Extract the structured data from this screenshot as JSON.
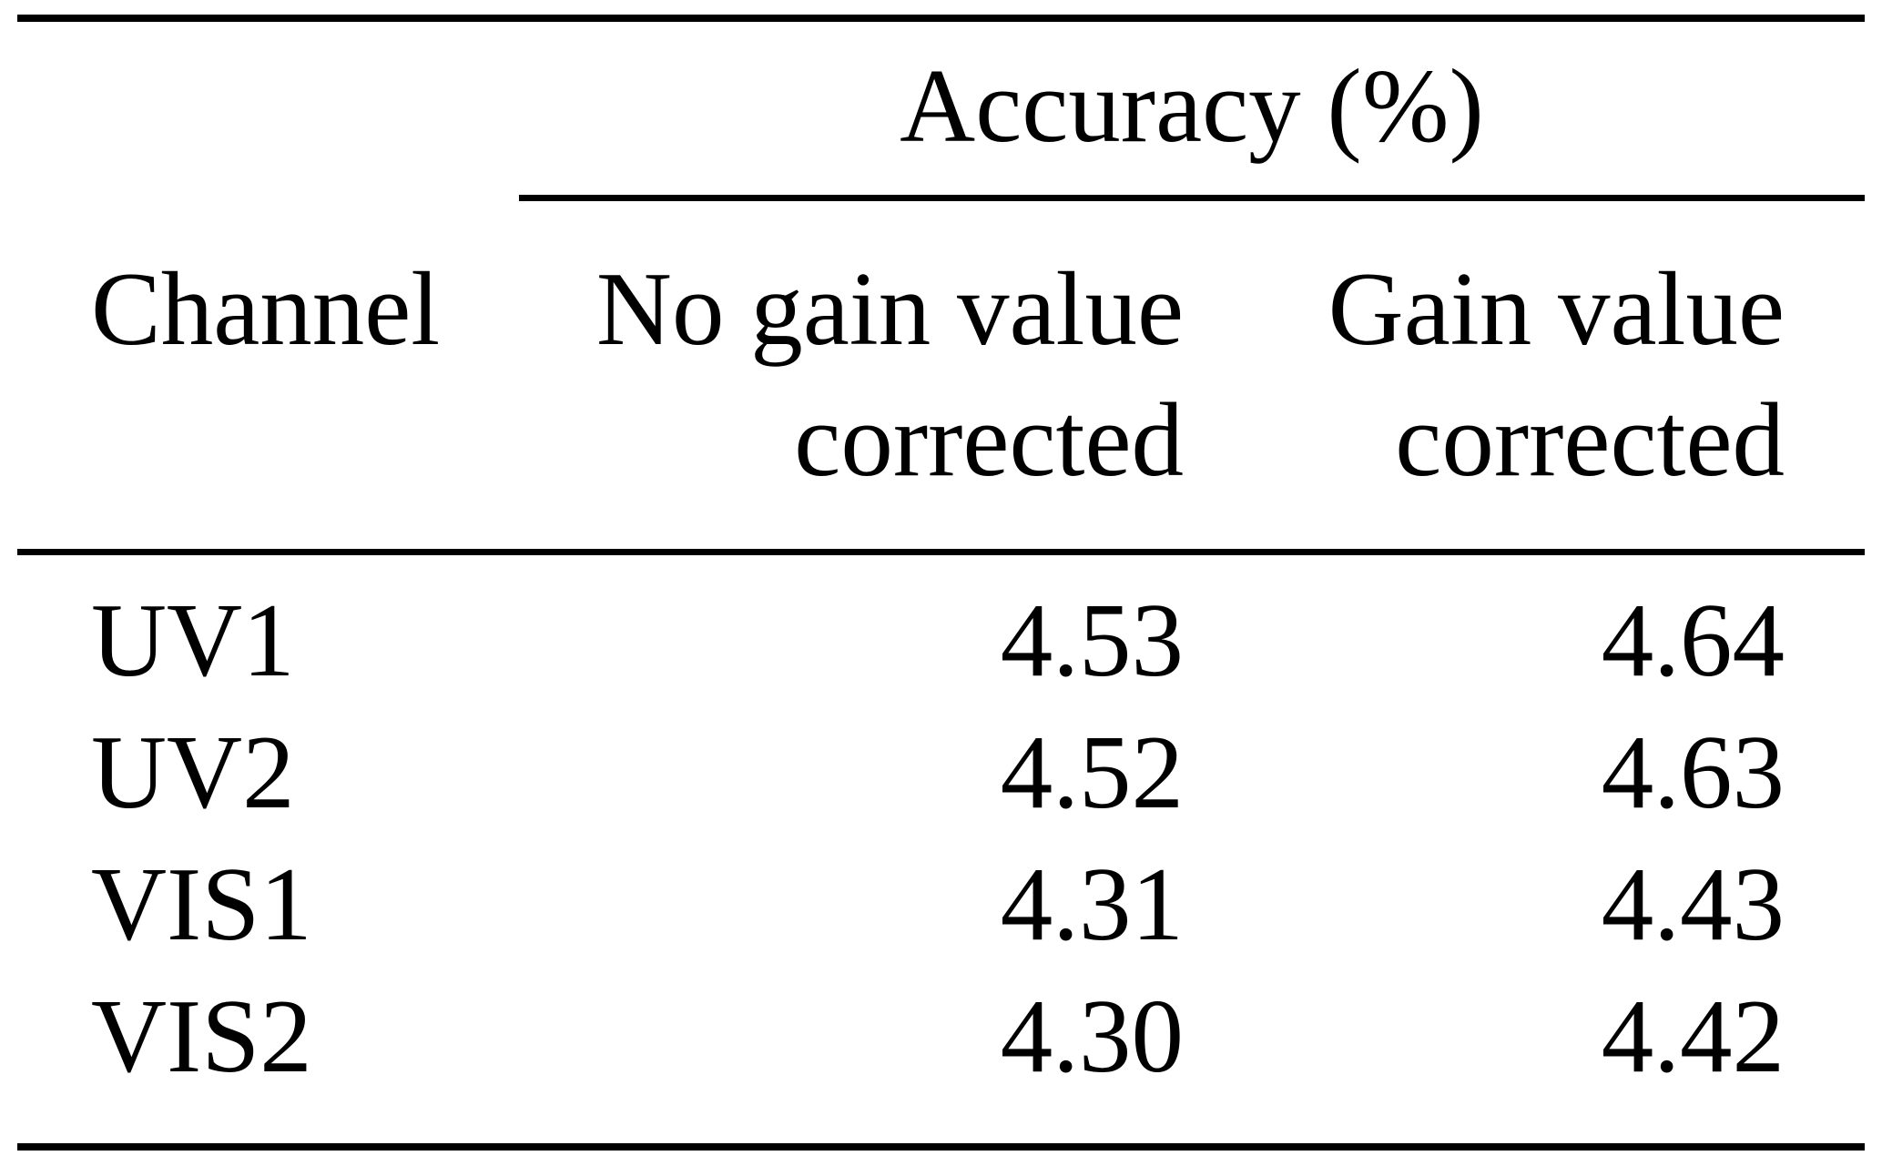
{
  "table": {
    "spanner_title": "Accuracy (%)",
    "col1_header": "Channel",
    "col2_header_line1": "No gain value",
    "col2_header_line2": "corrected",
    "col3_header_line1": "Gain value",
    "col3_header_line2": "corrected",
    "rows": [
      {
        "channel": "UV1",
        "no_gain_corrected": "4.53",
        "gain_corrected": "4.64"
      },
      {
        "channel": "UV2",
        "no_gain_corrected": "4.52",
        "gain_corrected": "4.63"
      },
      {
        "channel": "VIS1",
        "no_gain_corrected": "4.31",
        "gain_corrected": "4.43"
      },
      {
        "channel": "VIS2",
        "no_gain_corrected": "4.30",
        "gain_corrected": "4.42"
      }
    ]
  },
  "colors": {
    "text": "#000000",
    "background": "#ffffff",
    "rule": "#000000"
  },
  "chart_data": {
    "type": "table",
    "title": "Accuracy (%)",
    "columns": [
      "Channel",
      "No gain value corrected",
      "Gain value corrected"
    ],
    "categories": [
      "UV1",
      "UV2",
      "VIS1",
      "VIS2"
    ],
    "series": [
      {
        "name": "No gain value corrected",
        "values": [
          4.53,
          4.52,
          4.31,
          4.3
        ]
      },
      {
        "name": "Gain value corrected",
        "values": [
          4.64,
          4.63,
          4.43,
          4.42
        ]
      }
    ]
  }
}
